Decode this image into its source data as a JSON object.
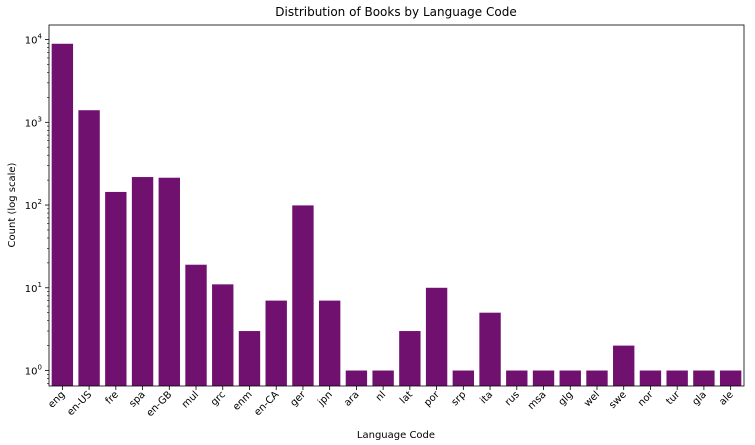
{
  "chart_data": {
    "type": "bar",
    "title": "Distribution of Books by Language Code",
    "xlabel": "Language Code",
    "ylabel": "Count (log scale)",
    "yscale": "log",
    "ylim": [
      0.65,
      15000
    ],
    "yticks": [
      {
        "value": 1,
        "base": "10",
        "exp": "0"
      },
      {
        "value": 10,
        "base": "10",
        "exp": "1"
      },
      {
        "value": 100,
        "base": "10",
        "exp": "2"
      },
      {
        "value": 1000,
        "base": "10",
        "exp": "3"
      },
      {
        "value": 10000,
        "base": "10",
        "exp": "4"
      }
    ],
    "grid": false,
    "bar_color": "#701170",
    "categories": [
      "eng",
      "en-US",
      "fre",
      "spa",
      "en-GB",
      "mul",
      "grc",
      "enm",
      "en-CA",
      "ger",
      "jpn",
      "ara",
      "nl",
      "lat",
      "por",
      "srp",
      "ita",
      "rus",
      "msa",
      "glg",
      "wel",
      "swe",
      "nor",
      "tur",
      "gla",
      "ale"
    ],
    "values": [
      8900,
      1400,
      144,
      218,
      214,
      19,
      11,
      3,
      7,
      99,
      7,
      1,
      1,
      3,
      10,
      1,
      5,
      1,
      1,
      1,
      1,
      2,
      1,
      1,
      1,
      1
    ]
  }
}
